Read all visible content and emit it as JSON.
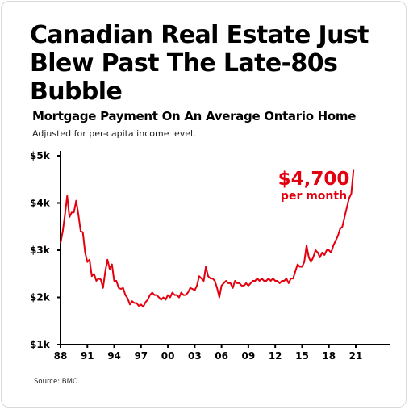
{
  "header": {
    "title": "Canadian Real Estate Just Blew Past The Late-80s Bubble",
    "subtitle": "Mortgage Payment On An Average Ontario Home",
    "note": "Adjusted for per-capita income level."
  },
  "footer": {
    "source": "Source: BMO."
  },
  "chart_data": {
    "type": "line",
    "title": "Mortgage Payment On An Average Ontario Home",
    "subtitle": "Adjusted for per-capita income level.",
    "xlabel": "",
    "ylabel": "",
    "xlim": [
      1988,
      2022.5
    ],
    "ylim": [
      1000,
      5000
    ],
    "grid": false,
    "x_ticks": [
      1988,
      1991,
      1994,
      1997,
      2000,
      2003,
      2006,
      2009,
      2012,
      2015,
      2018,
      2021
    ],
    "x_tick_labels": [
      "88",
      "91",
      "94",
      "97",
      "00",
      "03",
      "06",
      "09",
      "12",
      "15",
      "18",
      "21"
    ],
    "y_ticks": [
      1000,
      2000,
      3000,
      4000,
      5000
    ],
    "y_tick_labels": [
      "$1k",
      "$2k",
      "$3k",
      "$4k",
      "$5k"
    ],
    "color": "#e3000f",
    "annotation": {
      "value": "$4,700",
      "text": "per month"
    },
    "series": [
      {
        "points": [
          [
            1988.0,
            3150
          ],
          [
            1988.25,
            3400
          ],
          [
            1988.5,
            3750
          ],
          [
            1988.75,
            4150
          ],
          [
            1989.0,
            3700
          ],
          [
            1989.25,
            3800
          ],
          [
            1989.5,
            3800
          ],
          [
            1989.75,
            4050
          ],
          [
            1990.0,
            3750
          ],
          [
            1990.25,
            3400
          ],
          [
            1990.5,
            3380
          ],
          [
            1990.75,
            2950
          ],
          [
            1991.0,
            2750
          ],
          [
            1991.25,
            2800
          ],
          [
            1991.5,
            2450
          ],
          [
            1991.75,
            2500
          ],
          [
            1992.0,
            2350
          ],
          [
            1992.25,
            2400
          ],
          [
            1992.5,
            2380
          ],
          [
            1992.75,
            2200
          ],
          [
            1993.0,
            2550
          ],
          [
            1993.25,
            2800
          ],
          [
            1993.5,
            2600
          ],
          [
            1993.75,
            2700
          ],
          [
            1994.0,
            2350
          ],
          [
            1994.25,
            2350
          ],
          [
            1994.5,
            2200
          ],
          [
            1994.75,
            2180
          ],
          [
            1995.0,
            2200
          ],
          [
            1995.25,
            2050
          ],
          [
            1995.5,
            1980
          ],
          [
            1995.75,
            1850
          ],
          [
            1996.0,
            1920
          ],
          [
            1996.25,
            1880
          ],
          [
            1996.5,
            1880
          ],
          [
            1996.75,
            1820
          ],
          [
            1997.0,
            1850
          ],
          [
            1997.25,
            1800
          ],
          [
            1997.5,
            1900
          ],
          [
            1997.75,
            1950
          ],
          [
            1998.0,
            2050
          ],
          [
            1998.25,
            2100
          ],
          [
            1998.5,
            2050
          ],
          [
            1998.75,
            2050
          ],
          [
            1999.0,
            2000
          ],
          [
            1999.25,
            1950
          ],
          [
            1999.5,
            2000
          ],
          [
            1999.75,
            1950
          ],
          [
            2000.0,
            2050
          ],
          [
            2000.25,
            2000
          ],
          [
            2000.5,
            2100
          ],
          [
            2000.75,
            2050
          ],
          [
            2001.0,
            2050
          ],
          [
            2001.25,
            2000
          ],
          [
            2001.5,
            2100
          ],
          [
            2001.75,
            2050
          ],
          [
            2002.0,
            2050
          ],
          [
            2002.25,
            2100
          ],
          [
            2002.5,
            2200
          ],
          [
            2002.75,
            2180
          ],
          [
            2003.0,
            2150
          ],
          [
            2003.25,
            2250
          ],
          [
            2003.5,
            2450
          ],
          [
            2003.75,
            2400
          ],
          [
            2004.0,
            2350
          ],
          [
            2004.25,
            2650
          ],
          [
            2004.5,
            2450
          ],
          [
            2004.75,
            2400
          ],
          [
            2005.0,
            2400
          ],
          [
            2005.25,
            2350
          ],
          [
            2005.5,
            2200
          ],
          [
            2005.75,
            2000
          ],
          [
            2006.0,
            2250
          ],
          [
            2006.25,
            2300
          ],
          [
            2006.5,
            2350
          ],
          [
            2006.75,
            2300
          ],
          [
            2007.0,
            2300
          ],
          [
            2007.25,
            2200
          ],
          [
            2007.5,
            2350
          ],
          [
            2007.75,
            2300
          ],
          [
            2008.0,
            2300
          ],
          [
            2008.25,
            2250
          ],
          [
            2008.5,
            2250
          ],
          [
            2008.75,
            2300
          ],
          [
            2009.0,
            2250
          ],
          [
            2009.25,
            2300
          ],
          [
            2009.5,
            2350
          ],
          [
            2009.75,
            2350
          ],
          [
            2010.0,
            2400
          ],
          [
            2010.25,
            2350
          ],
          [
            2010.5,
            2400
          ],
          [
            2010.75,
            2350
          ],
          [
            2011.0,
            2350
          ],
          [
            2011.25,
            2400
          ],
          [
            2011.5,
            2350
          ],
          [
            2011.75,
            2400
          ],
          [
            2012.0,
            2350
          ],
          [
            2012.25,
            2350
          ],
          [
            2012.5,
            2300
          ],
          [
            2012.75,
            2350
          ],
          [
            2013.0,
            2350
          ],
          [
            2013.25,
            2400
          ],
          [
            2013.5,
            2300
          ],
          [
            2013.75,
            2400
          ],
          [
            2014.0,
            2400
          ],
          [
            2014.25,
            2550
          ],
          [
            2014.5,
            2700
          ],
          [
            2014.75,
            2650
          ],
          [
            2015.0,
            2650
          ],
          [
            2015.25,
            2750
          ],
          [
            2015.5,
            3100
          ],
          [
            2015.75,
            2850
          ],
          [
            2016.0,
            2750
          ],
          [
            2016.25,
            2850
          ],
          [
            2016.5,
            3000
          ],
          [
            2016.75,
            2950
          ],
          [
            2017.0,
            2850
          ],
          [
            2017.25,
            2950
          ],
          [
            2017.5,
            2900
          ],
          [
            2017.75,
            3000
          ],
          [
            2018.0,
            3000
          ],
          [
            2018.25,
            2950
          ],
          [
            2018.5,
            3100
          ],
          [
            2018.75,
            3200
          ],
          [
            2019.0,
            3300
          ],
          [
            2019.25,
            3450
          ],
          [
            2019.5,
            3500
          ],
          [
            2019.75,
            3700
          ],
          [
            2020.0,
            3900
          ],
          [
            2020.25,
            4100
          ],
          [
            2020.5,
            4200
          ],
          [
            2020.75,
            4700
          ]
        ]
      }
    ]
  }
}
